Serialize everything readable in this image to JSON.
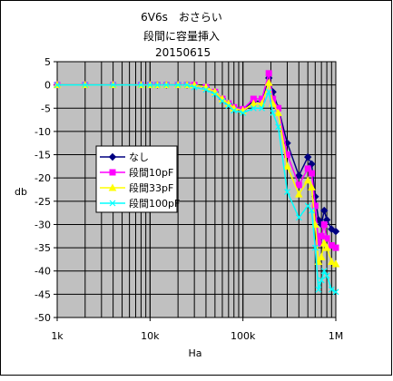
{
  "chart_data": {
    "type": "line",
    "title_lines": [
      "6V6s　おさらい",
      "段間に容量挿入",
      "20150615"
    ],
    "xlabel": "Ha",
    "ylabel": "db",
    "x_scale": "log",
    "xlim": [
      1000,
      1000000
    ],
    "ylim": [
      -50,
      5
    ],
    "y_ticks": [
      5,
      0,
      -5,
      -10,
      -15,
      -20,
      -25,
      -30,
      -35,
      -40,
      -45,
      -50
    ],
    "x_ticks": [
      {
        "value": 1000,
        "label": "1k"
      },
      {
        "value": 10000,
        "label": "10k"
      },
      {
        "value": 100000,
        "label": "100k"
      },
      {
        "value": 1000000,
        "label": "1M"
      }
    ],
    "grid": true,
    "plot_background": "#c0c0c0",
    "legend_position": "center-left",
    "series": [
      {
        "name": "なし",
        "color": "#000080",
        "marker": "diamond",
        "points": [
          [
            1000,
            0
          ],
          [
            2000,
            0
          ],
          [
            4000,
            0
          ],
          [
            8000,
            0
          ],
          [
            10000,
            0
          ],
          [
            12000,
            0
          ],
          [
            15000,
            0
          ],
          [
            20000,
            0
          ],
          [
            25000,
            0
          ],
          [
            30000,
            0
          ],
          [
            40000,
            -0.5
          ],
          [
            50000,
            -1.5
          ],
          [
            60000,
            -3
          ],
          [
            70000,
            -4
          ],
          [
            80000,
            -4.8
          ],
          [
            100000,
            -5.2
          ],
          [
            130000,
            -3.5
          ],
          [
            160000,
            -3.5
          ],
          [
            190000,
            1.5
          ],
          [
            210000,
            -1.5
          ],
          [
            240000,
            -5
          ],
          [
            300000,
            -12.5
          ],
          [
            400000,
            -19.5
          ],
          [
            500000,
            -15.5
          ],
          [
            550000,
            -17
          ],
          [
            600000,
            -24
          ],
          [
            650000,
            -29
          ],
          [
            700000,
            -30
          ],
          [
            750000,
            -27
          ],
          [
            800000,
            -29
          ],
          [
            900000,
            -31
          ],
          [
            1000000,
            -31.5
          ]
        ]
      },
      {
        "name": "段間10pF",
        "color": "#ff00ff",
        "marker": "square",
        "points": [
          [
            1000,
            0
          ],
          [
            2000,
            0
          ],
          [
            4000,
            0
          ],
          [
            8000,
            0
          ],
          [
            10000,
            0
          ],
          [
            12000,
            0
          ],
          [
            15000,
            0
          ],
          [
            20000,
            0
          ],
          [
            25000,
            0
          ],
          [
            30000,
            0
          ],
          [
            40000,
            -0.5
          ],
          [
            50000,
            -1.5
          ],
          [
            60000,
            -3
          ],
          [
            70000,
            -4
          ],
          [
            80000,
            -4.8
          ],
          [
            100000,
            -5.2
          ],
          [
            130000,
            -3
          ],
          [
            160000,
            -3
          ],
          [
            190000,
            2.5
          ],
          [
            210000,
            -3
          ],
          [
            240000,
            -5
          ],
          [
            300000,
            -15
          ],
          [
            400000,
            -21.5
          ],
          [
            500000,
            -18
          ],
          [
            550000,
            -19
          ],
          [
            600000,
            -26
          ],
          [
            650000,
            -34
          ],
          [
            700000,
            -32.5
          ],
          [
            750000,
            -30
          ],
          [
            800000,
            -33
          ],
          [
            900000,
            -34.5
          ],
          [
            1000000,
            -35
          ]
        ]
      },
      {
        "name": "段間33pF",
        "color": "#ffff00",
        "marker": "triangle",
        "points": [
          [
            1000,
            0
          ],
          [
            2000,
            0
          ],
          [
            4000,
            0
          ],
          [
            8000,
            0
          ],
          [
            10000,
            0
          ],
          [
            12000,
            0
          ],
          [
            15000,
            0
          ],
          [
            20000,
            0
          ],
          [
            25000,
            0
          ],
          [
            30000,
            0
          ],
          [
            40000,
            -0.5
          ],
          [
            50000,
            -1.5
          ],
          [
            60000,
            -3
          ],
          [
            70000,
            -4
          ],
          [
            80000,
            -5
          ],
          [
            100000,
            -5.5
          ],
          [
            130000,
            -4
          ],
          [
            160000,
            -4
          ],
          [
            190000,
            0.5
          ],
          [
            210000,
            -4
          ],
          [
            240000,
            -6
          ],
          [
            300000,
            -17.5
          ],
          [
            400000,
            -23.5
          ],
          [
            500000,
            -20.5
          ],
          [
            550000,
            -22
          ],
          [
            600000,
            -30
          ],
          [
            650000,
            -38
          ],
          [
            700000,
            -37
          ],
          [
            750000,
            -34
          ],
          [
            800000,
            -35
          ],
          [
            900000,
            -38
          ],
          [
            1000000,
            -38.5
          ]
        ]
      },
      {
        "name": "段間100pF",
        "color": "#00ffff",
        "marker": "x",
        "points": [
          [
            1000,
            0
          ],
          [
            2000,
            0
          ],
          [
            4000,
            0
          ],
          [
            8000,
            0
          ],
          [
            10000,
            0
          ],
          [
            12000,
            0
          ],
          [
            15000,
            0
          ],
          [
            20000,
            0
          ],
          [
            25000,
            0
          ],
          [
            30000,
            -0.5
          ],
          [
            40000,
            -1
          ],
          [
            50000,
            -2
          ],
          [
            60000,
            -3.5
          ],
          [
            70000,
            -4.5
          ],
          [
            80000,
            -5.5
          ],
          [
            100000,
            -6
          ],
          [
            130000,
            -5
          ],
          [
            160000,
            -5
          ],
          [
            190000,
            -1.5
          ],
          [
            210000,
            -6
          ],
          [
            240000,
            -9
          ],
          [
            300000,
            -23
          ],
          [
            400000,
            -28.5
          ],
          [
            500000,
            -26
          ],
          [
            550000,
            -27
          ],
          [
            600000,
            -35
          ],
          [
            650000,
            -44
          ],
          [
            700000,
            -42
          ],
          [
            750000,
            -40
          ],
          [
            800000,
            -41
          ],
          [
            900000,
            -44
          ],
          [
            1000000,
            -44.5
          ]
        ]
      }
    ]
  }
}
